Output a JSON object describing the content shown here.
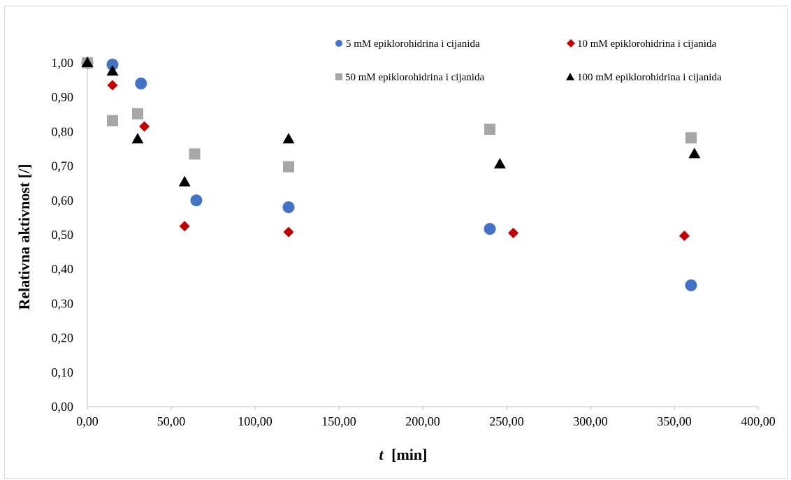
{
  "chart_data": {
    "type": "scatter",
    "title": "",
    "xlabel_var": "t",
    "xlabel_unit": "[min]",
    "ylabel": "Relativna aktivnost [/]",
    "xlim": [
      0,
      400
    ],
    "ylim": [
      0,
      1
    ],
    "x_ticks": [
      0,
      50,
      100,
      150,
      200,
      250,
      300,
      350,
      400
    ],
    "x_tick_labels": [
      "0,00",
      "50,00",
      "100,00",
      "150,00",
      "200,00",
      "250,00",
      "300,00",
      "350,00",
      "400,00"
    ],
    "y_ticks": [
      0,
      0.1,
      0.2,
      0.3,
      0.4,
      0.5,
      0.6,
      0.7,
      0.8,
      0.9,
      1.0
    ],
    "y_tick_labels": [
      "0,00",
      "0,10",
      "0,20",
      "0,30",
      "0,40",
      "0,50",
      "0,60",
      "0,70",
      "0,80",
      "0,90",
      "1,00"
    ],
    "grid": false,
    "legend_position": "top-right",
    "series": [
      {
        "name": "5 mM epiklorohidrina i cijanida",
        "marker": "circle",
        "color": "#4472c4",
        "points": [
          [
            0,
            1.0
          ],
          [
            15,
            0.995
          ],
          [
            32,
            0.94
          ],
          [
            65,
            0.6
          ],
          [
            120,
            0.58
          ],
          [
            240,
            0.517
          ],
          [
            360,
            0.353
          ]
        ]
      },
      {
        "name": "10 mM epiklorohidrina i cijanida",
        "marker": "diamond",
        "color": "#c00000",
        "points": [
          [
            0,
            1.0
          ],
          [
            15,
            0.935
          ],
          [
            34,
            0.815
          ],
          [
            58,
            0.525
          ],
          [
            120,
            0.508
          ],
          [
            254,
            0.505
          ],
          [
            356,
            0.497
          ]
        ]
      },
      {
        "name": "50 mM epiklorohidrina i cijanida",
        "marker": "square",
        "color": "#a6a6a6",
        "points": [
          [
            0,
            1.0
          ],
          [
            15,
            0.832
          ],
          [
            30,
            0.852
          ],
          [
            64,
            0.735
          ],
          [
            120,
            0.698
          ],
          [
            240,
            0.807
          ],
          [
            360,
            0.782
          ]
        ]
      },
      {
        "name": "100 mM epiklorohidrina i cijanida",
        "marker": "triangle",
        "color": "#000000",
        "points": [
          [
            0,
            1.0
          ],
          [
            15,
            0.975
          ],
          [
            30,
            0.778
          ],
          [
            58,
            0.653
          ],
          [
            120,
            0.778
          ],
          [
            246,
            0.705
          ],
          [
            362,
            0.735
          ]
        ]
      }
    ]
  }
}
